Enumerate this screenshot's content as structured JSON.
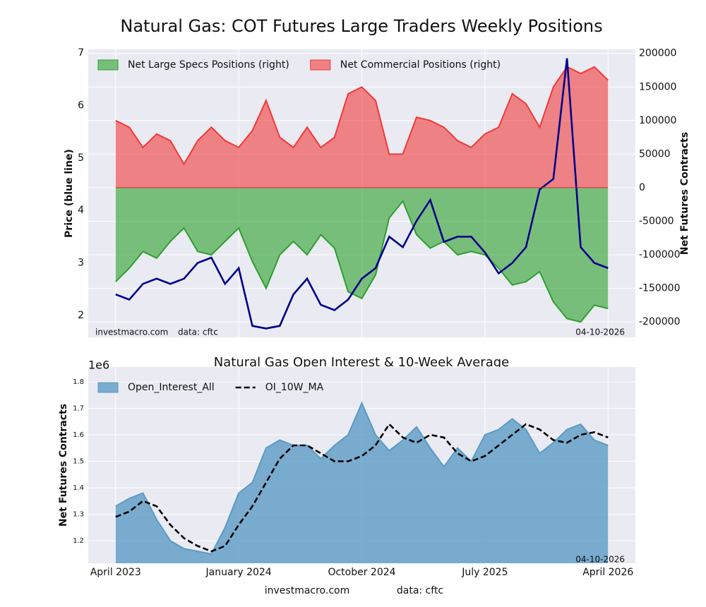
{
  "chart_data": [
    {
      "type": "area_line_dual",
      "title": "Natural Gas: COT Futures Large Traders Weekly Positions",
      "ylabel": "Price (blue line)",
      "y2label": "Net Futures Contracts",
      "annotations": [
        "investmacro.com",
        "data: cftc",
        "04-10-2026"
      ],
      "x": [
        "2023-04",
        "2023-05",
        "2023-06",
        "2023-07",
        "2023-08",
        "2023-09",
        "2023-10",
        "2023-11",
        "2023-12",
        "2024-01",
        "2024-02",
        "2024-03",
        "2024-04",
        "2024-05",
        "2024-06",
        "2024-07",
        "2024-08",
        "2024-09",
        "2024-10",
        "2024-11",
        "2024-12",
        "2025-01",
        "2025-02",
        "2025-03",
        "2025-04",
        "2025-05",
        "2025-06",
        "2025-07",
        "2025-08",
        "2025-09",
        "2025-10",
        "2025-11",
        "2025-12",
        "2026-01",
        "2026-02",
        "2026-03",
        "2026-04"
      ],
      "xlim": [
        "2023-02",
        "2026-06"
      ],
      "xticks": [
        "2023-04",
        "2024-01",
        "2024-10",
        "2025-07",
        "2026-04"
      ],
      "ylim": [
        1.58,
        7.07
      ],
      "yticks": [
        2,
        3,
        4,
        5,
        6,
        7
      ],
      "y2lim": [
        -223000,
        206000
      ],
      "y2ticks": [
        -200000,
        -150000,
        -100000,
        -50000,
        0,
        50000,
        100000,
        150000,
        200000
      ],
      "grid": true,
      "legend": "upper left",
      "series": [
        {
          "name": "Net Large Specs Positions (right)",
          "color": "#2ca02c",
          "axis": "y2",
          "kind": "area",
          "values": [
            -140000,
            -120000,
            -95000,
            -105000,
            -80000,
            -60000,
            -95000,
            -100000,
            -80000,
            -60000,
            -110000,
            -150000,
            -100000,
            -80000,
            -100000,
            -70000,
            -90000,
            -155000,
            -165000,
            -130000,
            -45000,
            -20000,
            -70000,
            -90000,
            -80000,
            -100000,
            -95000,
            -100000,
            -120000,
            -145000,
            -140000,
            -125000,
            -170000,
            -195000,
            -200000,
            -175000,
            -180000
          ]
        },
        {
          "name": "Net Commercial Positions (right)",
          "color": "#f03a3a",
          "axis": "y2",
          "kind": "area",
          "values": [
            100000,
            90000,
            60000,
            80000,
            70000,
            35000,
            70000,
            90000,
            70000,
            60000,
            85000,
            130000,
            75000,
            60000,
            90000,
            60000,
            75000,
            140000,
            150000,
            130000,
            50000,
            50000,
            105000,
            100000,
            90000,
            70000,
            60000,
            80000,
            90000,
            140000,
            125000,
            90000,
            150000,
            180000,
            170000,
            180000,
            160000
          ]
        },
        {
          "color": "#00008b",
          "axis": "y",
          "kind": "line",
          "values": [
            2.4,
            2.3,
            2.6,
            2.7,
            2.6,
            2.7,
            3.0,
            3.1,
            2.6,
            2.9,
            1.8,
            1.75,
            1.8,
            2.4,
            2.7,
            2.2,
            2.1,
            2.3,
            2.7,
            2.9,
            3.5,
            3.3,
            3.8,
            4.2,
            3.4,
            3.5,
            3.5,
            3.2,
            2.8,
            3.0,
            3.3,
            4.4,
            4.6,
            6.9,
            3.3,
            3.0,
            2.9
          ]
        }
      ]
    },
    {
      "type": "area_line",
      "title": "Natural Gas Open Interest & 10-Week Average",
      "ylabel": "Net Futures Contracts",
      "offset_label": "1e6",
      "annotations": [
        "04-10-2026"
      ],
      "x": [
        "2023-04",
        "2023-05",
        "2023-06",
        "2023-07",
        "2023-08",
        "2023-09",
        "2023-10",
        "2023-11",
        "2023-12",
        "2024-01",
        "2024-02",
        "2024-03",
        "2024-04",
        "2024-05",
        "2024-06",
        "2024-07",
        "2024-08",
        "2024-09",
        "2024-10",
        "2024-11",
        "2024-12",
        "2025-01",
        "2025-02",
        "2025-03",
        "2025-04",
        "2025-05",
        "2025-06",
        "2025-07",
        "2025-08",
        "2025-09",
        "2025-10",
        "2025-11",
        "2025-12",
        "2026-01",
        "2026-02",
        "2026-03",
        "2026-04"
      ],
      "xlim": [
        "2023-02",
        "2026-06"
      ],
      "xticks": [
        {
          "value": "2023-04",
          "label": "April 2023"
        },
        {
          "value": "2024-01",
          "label": "January 2024"
        },
        {
          "value": "2024-10",
          "label": "October 2024"
        },
        {
          "value": "2025-07",
          "label": "July 2025"
        },
        {
          "value": "2026-04",
          "label": "April 2026"
        }
      ],
      "ylim": [
        1.115,
        1.856
      ],
      "yticks": [
        1.2,
        1.3,
        1.4,
        1.5,
        1.6,
        1.7,
        1.8
      ],
      "grid": true,
      "legend": "upper left",
      "series": [
        {
          "name": "Open_Interest_All",
          "color": "#5b9bc4",
          "kind": "area",
          "values": [
            1.33,
            1.36,
            1.38,
            1.28,
            1.2,
            1.17,
            1.16,
            1.15,
            1.25,
            1.38,
            1.42,
            1.55,
            1.58,
            1.56,
            1.56,
            1.51,
            1.56,
            1.6,
            1.72,
            1.6,
            1.54,
            1.58,
            1.63,
            1.55,
            1.48,
            1.55,
            1.5,
            1.6,
            1.62,
            1.66,
            1.62,
            1.53,
            1.57,
            1.62,
            1.64,
            1.58,
            1.56
          ]
        },
        {
          "name": "OI_10W_MA",
          "color": "#000000",
          "kind": "dashed",
          "values": [
            1.29,
            1.31,
            1.35,
            1.33,
            1.26,
            1.21,
            1.18,
            1.16,
            1.18,
            1.26,
            1.33,
            1.42,
            1.51,
            1.56,
            1.56,
            1.53,
            1.5,
            1.5,
            1.52,
            1.56,
            1.64,
            1.59,
            1.57,
            1.6,
            1.59,
            1.53,
            1.5,
            1.52,
            1.56,
            1.6,
            1.64,
            1.62,
            1.58,
            1.57,
            1.6,
            1.61,
            1.59
          ]
        }
      ]
    }
  ],
  "footer": {
    "site": "investmacro.com",
    "source": "data: cftc"
  }
}
